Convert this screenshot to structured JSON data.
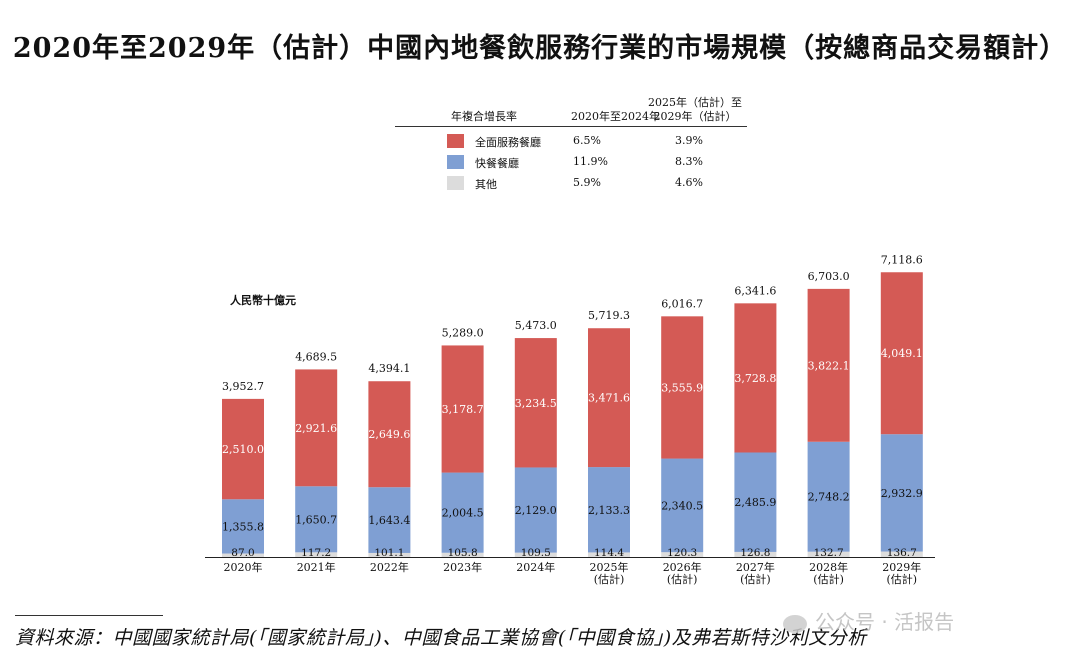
{
  "title": "2020年至2029年（估計）中國內地餐飲服務行業的市場規模（按總商品交易額計）",
  "legend_table": {
    "header_label": "年複合增長率",
    "col1": "2020年至2024年",
    "col2_line1": "2025年（估計）至",
    "col2_line2": "2029年（估計）",
    "rows": [
      {
        "name": "全面服務餐廳",
        "r1": "6.5%",
        "r2": "3.9%",
        "color": "#d45a55"
      },
      {
        "name": "快餐餐廳",
        "r1": "11.9%",
        "r2": "8.3%",
        "color": "#7f9fd3"
      },
      {
        "name": "其他",
        "r1": "5.9%",
        "r2": "4.6%",
        "color": "#dcdcdc"
      }
    ]
  },
  "unit_label": "人民幣十億元",
  "chart_data": {
    "type": "bar",
    "stacked": true,
    "categories": [
      "2020年",
      "2021年",
      "2022年",
      "2023年",
      "2024年",
      "2025年\n(估計)",
      "2026年\n(估計)",
      "2027年\n(估計)",
      "2028年\n(估計)",
      "2029年\n(估計)"
    ],
    "series": [
      {
        "name": "其他",
        "color": "#dcdcdc",
        "values": [
          87.0,
          117.2,
          101.1,
          105.8,
          109.5,
          114.4,
          120.3,
          126.8,
          132.7,
          136.7
        ],
        "labels": [
          "87.0",
          "117.2",
          "101.1",
          "105.8",
          "109.5",
          "114.4",
          "120.3",
          "126.8",
          "132.7",
          "136.7"
        ]
      },
      {
        "name": "快餐餐廳",
        "color": "#7f9fd3",
        "values": [
          1355.8,
          1650.7,
          1643.4,
          2004.5,
          2129.0,
          2133.3,
          2340.5,
          2485.9,
          2748.2,
          2932.9
        ],
        "labels": [
          "1,355.8",
          "1,650.7",
          "1,643.4",
          "2,004.5",
          "2,129.0",
          "2,133.3",
          "2,340.5",
          "2,485.9",
          "2,748.2",
          "2,932.9"
        ]
      },
      {
        "name": "全面服務餐廳",
        "color": "#d45a55",
        "values": [
          2510.0,
          2921.6,
          2649.6,
          3178.7,
          3234.5,
          3471.6,
          3555.9,
          3728.8,
          3822.1,
          4049.1
        ],
        "labels": [
          "2,510.0",
          "2,921.6",
          "2,649.6",
          "3,178.7",
          "3,234.5",
          "3,471.6",
          "3,555.9",
          "3,728.8",
          "3,822.1",
          "4,049.1"
        ]
      }
    ],
    "totals": [
      3952.7,
      4689.5,
      4394.1,
      5289.0,
      5473.0,
      5719.3,
      6016.7,
      6341.6,
      6703.0,
      7118.6
    ],
    "total_labels": [
      "3,952.7",
      "4,689.5",
      "4,394.1",
      "5,289.0",
      "5,473.0",
      "5,719.3",
      "6,016.7",
      "6,341.6",
      "6,703.0",
      "7,118.6"
    ],
    "ylabel": "人民幣十億元",
    "ylim": [
      0,
      7300
    ],
    "grid": false
  },
  "source": "資料來源：中國國家統計局(「國家統計局」)、中國食品工業協會(「中國食協」)及弗若斯特沙利文分析",
  "watermark": "公众号 · 活报告"
}
